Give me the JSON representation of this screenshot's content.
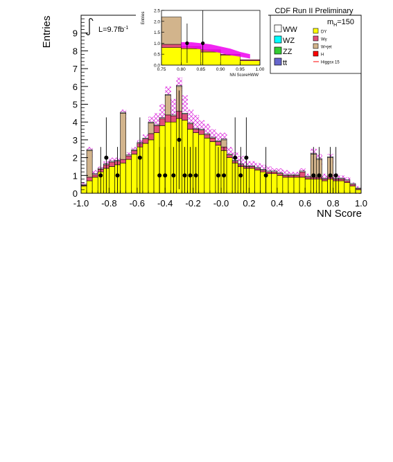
{
  "chart_data": {
    "type": "bar",
    "title": "CDF Run II Preliminary",
    "xlabel": "NN Score",
    "ylabel": "Entries",
    "xlim": [
      -1.0,
      1.0
    ],
    "ylim": [
      0,
      10
    ],
    "x_ticks": [
      "-1.0",
      "-0.8",
      "-0.6",
      "-0.4",
      "-0.2",
      "-0.0",
      "0.2",
      "0.4",
      "0.6",
      "0.8",
      "1.0"
    ],
    "y_ticks": [
      "0",
      "1",
      "2",
      "3",
      "4",
      "5",
      "6",
      "7",
      "8",
      "9"
    ],
    "luminosity": "L=9.7fb",
    "luminosity_exp": "-1",
    "mass_label": "m",
    "mass_sub": "H",
    "mass_value": "=150",
    "bin_edges": [
      -1.0,
      -0.96,
      -0.92,
      -0.88,
      -0.84,
      -0.8,
      -0.76,
      -0.72,
      -0.68,
      -0.64,
      -0.6,
      -0.56,
      -0.52,
      -0.48,
      -0.44,
      -0.4,
      -0.36,
      -0.32,
      -0.28,
      -0.24,
      -0.2,
      -0.16,
      -0.12,
      -0.08,
      -0.04,
      0.0,
      0.04,
      0.08,
      0.12,
      0.16,
      0.2,
      0.24,
      0.28,
      0.32,
      0.36,
      0.4,
      0.44,
      0.48,
      0.52,
      0.56,
      0.6,
      0.64,
      0.68,
      0.72,
      0.76,
      0.8,
      0.84,
      0.88,
      0.92,
      0.96,
      1.0
    ],
    "series": [
      {
        "name": "DY",
        "color": "#ffff00",
        "values": [
          0.4,
          0.7,
          0.9,
          1.2,
          1.4,
          1.5,
          1.6,
          1.7,
          1.9,
          2.2,
          2.6,
          2.8,
          3.0,
          3.4,
          3.8,
          4.0,
          4.0,
          4.2,
          4.1,
          3.6,
          3.4,
          3.3,
          3.1,
          2.9,
          2.7,
          2.4,
          2.0,
          1.7,
          1.5,
          1.4,
          1.4,
          1.3,
          1.2,
          1.1,
          1.1,
          1.0,
          0.9,
          0.9,
          0.9,
          0.9,
          0.8,
          0.8,
          0.8,
          0.7,
          0.8,
          0.7,
          0.7,
          0.6,
          0.4,
          0.2
        ]
      },
      {
        "name": "Wγ",
        "color": "#e0507a",
        "values": [
          0.05,
          0.2,
          0.15,
          0.15,
          0.2,
          0.25,
          0.2,
          0.2,
          0.2,
          0.2,
          0.2,
          0.25,
          0.35,
          0.4,
          0.4,
          0.4,
          0.35,
          0.4,
          0.35,
          0.3,
          0.2,
          0.25,
          0.2,
          0.2,
          0.2,
          0.2,
          0.15,
          0.1,
          0.1,
          0.1,
          0.1,
          0.1,
          0.1,
          0.1,
          0.1,
          0.1,
          0.1,
          0.1,
          0.1,
          0.3,
          0.1,
          0.1,
          0.1,
          0.1,
          0.1,
          0.1,
          0.1,
          0.1,
          0.1,
          0.05
        ]
      },
      {
        "name": "W+jet",
        "color": "#d2b48c",
        "values": [
          0.0,
          1.5,
          0.0,
          0.0,
          0.0,
          0.0,
          0.0,
          2.6,
          0.0,
          0.0,
          0.0,
          0.0,
          0.6,
          0.0,
          0.0,
          1.1,
          0.0,
          1.4,
          0.0,
          0.0,
          0.0,
          0.0,
          0.0,
          0.0,
          0.0,
          0.4,
          0.0,
          0.0,
          0.0,
          0.0,
          0.0,
          0.0,
          0.0,
          0.0,
          0.0,
          0.0,
          0.0,
          0.0,
          0.0,
          0.0,
          0.0,
          1.3,
          1.0,
          0.0,
          1.1,
          0.0,
          0.0,
          0.0,
          0.0,
          0.0
        ]
      },
      {
        "name": "WW",
        "color": "#ffffff",
        "values": [
          0.05,
          0.05,
          0.05,
          0.05,
          0.05,
          0.05,
          0.05,
          0.05,
          0.05,
          0.05,
          0.05,
          0.05,
          0.05,
          0.05,
          0.05,
          0.05,
          0.05,
          0.05,
          0.05,
          0.05,
          0.05,
          0.05,
          0.05,
          0.05,
          0.05,
          0.05,
          0.05,
          0.05,
          0.05,
          0.05,
          0.05,
          0.05,
          0.05,
          0.05,
          0.05,
          0.05,
          0.05,
          0.05,
          0.05,
          0.05,
          0.05,
          0.05,
          0.05,
          0.05,
          0.05,
          0.05,
          0.05,
          0.05,
          0.05,
          0.05
        ]
      }
    ],
    "uncertainty_band": {
      "color": "#e040e0",
      "upper": [
        0.6,
        2.6,
        1.3,
        1.5,
        1.8,
        2.0,
        2.0,
        4.7,
        2.3,
        2.6,
        3.0,
        3.3,
        4.3,
        4.5,
        5.0,
        6.0,
        5.3,
        6.5,
        5.5,
        4.7,
        4.4,
        4.1,
        3.9,
        3.6,
        3.4,
        3.4,
        2.6,
        2.3,
        2.1,
        1.8,
        1.8,
        1.7,
        1.6,
        1.5,
        1.4,
        1.4,
        1.3,
        1.2,
        1.2,
        1.4,
        1.1,
        2.5,
        2.2,
        1.1,
        2.2,
        1.1,
        1.0,
        0.9,
        0.6,
        0.4
      ],
      "lower": [
        0.4,
        2.2,
        1.0,
        1.2,
        1.4,
        1.6,
        1.6,
        4.3,
        1.9,
        2.2,
        2.6,
        2.8,
        3.7,
        3.9,
        4.3,
        5.4,
        4.6,
        5.9,
        4.8,
        4.0,
        3.6,
        3.5,
        3.3,
        3.1,
        2.9,
        2.9,
        2.1,
        1.8,
        1.6,
        1.4,
        1.4,
        1.3,
        1.3,
        1.2,
        1.1,
        1.1,
        1.0,
        0.9,
        0.9,
        1.2,
        0.9,
        2.1,
        1.8,
        0.9,
        1.9,
        0.9,
        0.8,
        0.7,
        0.4,
        0.2
      ]
    },
    "data_points": {
      "x": [
        -0.86,
        -0.82,
        -0.74,
        -0.58,
        -0.44,
        -0.4,
        -0.34,
        -0.3,
        -0.26,
        -0.22,
        -0.18,
        -0.02,
        0.02,
        0.1,
        0.14,
        0.18,
        0.32,
        0.66,
        0.7,
        0.78,
        0.82
      ],
      "y": [
        1,
        2,
        1,
        2,
        1,
        1,
        1,
        3,
        1,
        1,
        1,
        1,
        1,
        2,
        1,
        2,
        1,
        1,
        1,
        1,
        1
      ]
    },
    "legend": {
      "placement": "top-right",
      "entries": [
        {
          "name": "WW",
          "color": "#ffffff"
        },
        {
          "name": "WZ",
          "color": "#00ffff"
        },
        {
          "name": "ZZ",
          "color": "#33cc33"
        },
        {
          "name": "tt",
          "color": "#6666cc"
        },
        {
          "name": "DY",
          "color": "#ffff00"
        },
        {
          "name": "Wγ",
          "color": "#e0507a"
        },
        {
          "name": "W+jet",
          "color": "#d2b48c"
        },
        {
          "name": "H",
          "color": "#ff0000"
        },
        {
          "name": "Higgsx 15",
          "color": "#ff0000",
          "line": true
        }
      ]
    },
    "inset": {
      "type": "bar",
      "xlabel": "NN ScoreHWW",
      "ylabel": "Entries",
      "xlim": [
        0.75,
        1.0
      ],
      "ylim": [
        0,
        2.5
      ],
      "x_ticks": [
        "0.75",
        "0.80",
        "0.85",
        "0.90",
        "0.95",
        "1.00"
      ],
      "y_ticks": [
        "0.0",
        "0.5",
        "1.0",
        "1.5",
        "2.0",
        "2.5"
      ],
      "bin_edges": [
        0.75,
        0.8,
        0.85,
        0.9,
        0.95,
        1.0
      ],
      "series": [
        {
          "name": "DY",
          "color": "#ffff00",
          "values": [
            0.8,
            0.75,
            0.6,
            0.45,
            0.2
          ]
        },
        {
          "name": "Wγ",
          "color": "#e0507a",
          "values": [
            0.15,
            0.1,
            0.1,
            0.05,
            0.05
          ]
        },
        {
          "name": "W+jet",
          "color": "#d2b48c",
          "values": [
            1.25,
            0.0,
            0.0,
            0.0,
            0.0
          ]
        }
      ],
      "band_x": [
        0.8,
        0.825,
        0.85,
        0.875,
        0.9,
        0.925,
        0.95,
        0.975
      ],
      "band_upper": [
        1.05,
        1.05,
        1.0,
        0.95,
        0.85,
        0.75,
        0.6,
        0.5
      ],
      "band_lower": [
        0.8,
        0.8,
        0.72,
        0.65,
        0.55,
        0.45,
        0.38,
        0.3
      ],
      "data_points": {
        "x": [
          0.815,
          0.855
        ],
        "y": [
          1,
          1
        ],
        "err": [
          0.9,
          1.5
        ]
      }
    }
  }
}
